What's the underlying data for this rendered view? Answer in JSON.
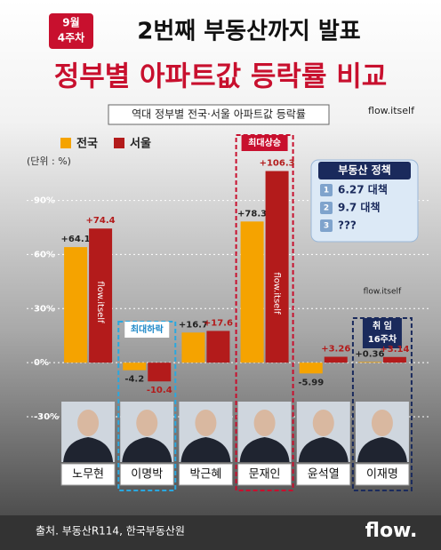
{
  "chart_data": {
    "type": "bar",
    "badge": [
      "9월",
      "4주차"
    ],
    "title": "2번째 부동산까지 발표",
    "subtitle": "정부별 아파트값 등락률 비교",
    "chart_title": "역대 정부별 전국·서울 아파트값 등락률",
    "unit": "(단위 : %)",
    "handle": "flow.itself",
    "categories": [
      "노무현",
      "이명박",
      "박근혜",
      "문재인",
      "윤석열",
      "이재명"
    ],
    "series": [
      {
        "name": "전국",
        "color": "#f5a300",
        "values": [
          64.1,
          -4.2,
          16.7,
          78.3,
          -5.99,
          0.36
        ],
        "value_labels": [
          "+64.1",
          "-4.2",
          "+16.7",
          "+78.3",
          "-5.99",
          "+0.36"
        ]
      },
      {
        "name": "서울",
        "color": "#b31b1b",
        "values": [
          74.4,
          -10.4,
          17.6,
          106.3,
          3.26,
          3.14
        ],
        "value_labels": [
          "+74.4",
          "-10.4",
          "+17.6",
          "+106.3",
          "+3.26",
          "+3.14"
        ]
      }
    ],
    "ylim": [
      -30,
      110
    ],
    "yticks": [
      {
        "value": -30,
        "label": "-30%"
      },
      {
        "value": 0,
        "label": "0%"
      },
      {
        "value": 30,
        "label": "30%"
      },
      {
        "value": 60,
        "label": "60%"
      },
      {
        "value": 90,
        "label": "90%"
      }
    ],
    "grid": true,
    "annotations": {
      "max_rise": "최대상승",
      "max_fall": "최대하락",
      "inaug": [
        "취 임",
        "16주차"
      ]
    },
    "policy": {
      "title": "부동산 정책",
      "items": [
        {
          "num": 1,
          "text": "6.27 대책"
        },
        {
          "num": 2,
          "text": "9.7 대책"
        },
        {
          "num": 3,
          "text": "???"
        }
      ]
    },
    "source": "출처. 부동산R114, 한국부동산원",
    "logo": "flow."
  }
}
